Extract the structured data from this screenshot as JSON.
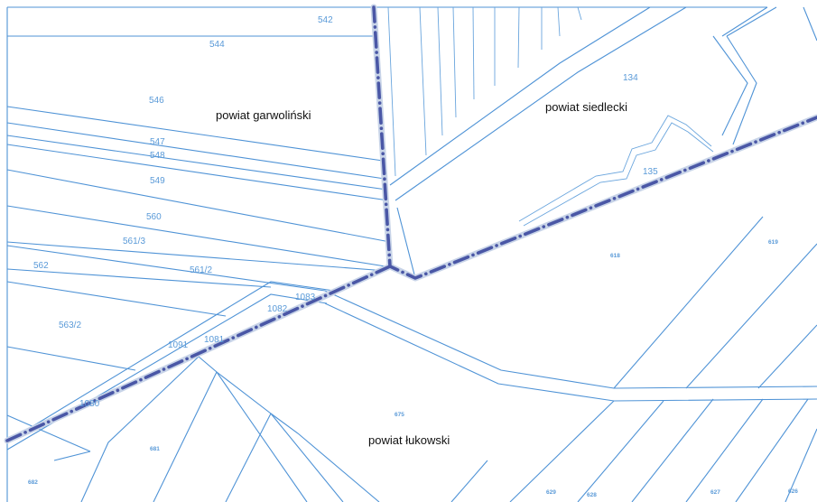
{
  "map": {
    "counties": [
      {
        "id": "garwolinski",
        "label": "powiat garwoliński"
      },
      {
        "id": "siedlecki",
        "label": "powiat siedlecki"
      },
      {
        "id": "lukowski",
        "label": "powiat łukowski"
      }
    ],
    "parcels": [
      {
        "id": "p542",
        "label": "542"
      },
      {
        "id": "p544",
        "label": "544"
      },
      {
        "id": "p546",
        "label": "546"
      },
      {
        "id": "p547",
        "label": "547"
      },
      {
        "id": "p548",
        "label": "548"
      },
      {
        "id": "p549",
        "label": "549"
      },
      {
        "id": "p560",
        "label": "560"
      },
      {
        "id": "p561-3",
        "label": "561/3"
      },
      {
        "id": "p561-2",
        "label": "561/2"
      },
      {
        "id": "p562",
        "label": "562"
      },
      {
        "id": "p563-2",
        "label": "563/2"
      },
      {
        "id": "p1083",
        "label": "1083"
      },
      {
        "id": "p1082",
        "label": "1082"
      },
      {
        "id": "p1091",
        "label": "1091"
      },
      {
        "id": "p1081",
        "label": "1081"
      },
      {
        "id": "p1080",
        "label": "1080"
      },
      {
        "id": "p134",
        "label": "134"
      },
      {
        "id": "p135",
        "label": "135"
      },
      {
        "id": "p618",
        "label": "618"
      },
      {
        "id": "p619",
        "label": "619"
      },
      {
        "id": "p675",
        "label": "675"
      },
      {
        "id": "p681",
        "label": "681"
      },
      {
        "id": "p682",
        "label": "682"
      },
      {
        "id": "p629",
        "label": "629"
      },
      {
        "id": "p628",
        "label": "628"
      },
      {
        "id": "p627",
        "label": "627"
      },
      {
        "id": "p626",
        "label": "626"
      }
    ]
  }
}
